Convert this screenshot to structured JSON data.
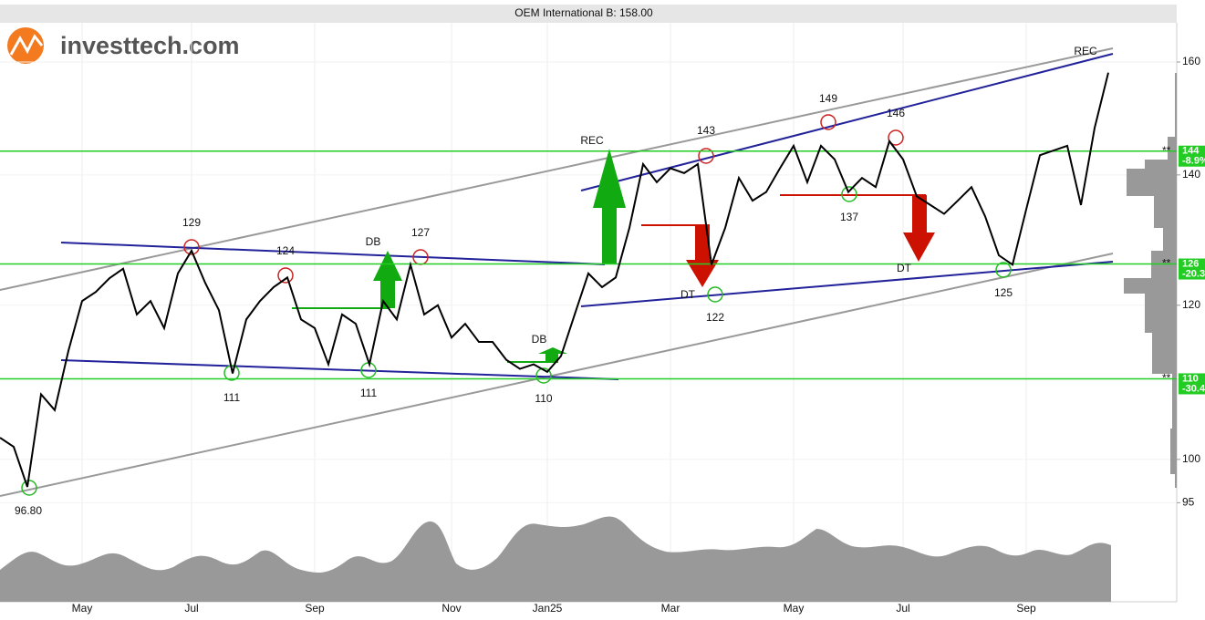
{
  "logo": "investtech.com",
  "chart_data": {
    "type": "line",
    "title": "OEM International B: 158.00",
    "categories": [
      null,
      null,
      null,
      null,
      null,
      null,
      "May",
      null,
      null,
      null,
      null,
      null,
      null,
      null,
      "Jul",
      null,
      null,
      null,
      null,
      null,
      null,
      null,
      null,
      "Sep",
      null,
      null,
      null,
      null,
      null,
      null,
      null,
      null,
      null,
      "Nov",
      null,
      null,
      null,
      null,
      null,
      null,
      "Jan25",
      null,
      null,
      null,
      null,
      null,
      null,
      null,
      null,
      "Mar",
      null,
      null,
      null,
      null,
      null,
      null,
      null,
      null,
      "May",
      null,
      null,
      null,
      null,
      null,
      null,
      null,
      "Jul",
      null,
      null,
      null,
      null,
      null,
      null,
      null,
      null,
      "Sep",
      null,
      null,
      null,
      null,
      null,
      null
    ],
    "series": [
      {
        "name": "OEM International B",
        "color": "#000000",
        "values": [
          102.6,
          101.5,
          96.8,
          108,
          106,
          113.7,
          120.6,
          121.9,
          123.9,
          125.3,
          118.7,
          120.6,
          116.8,
          124.6,
          128,
          123.2,
          119.3,
          110.7,
          118,
          120.6,
          122.6,
          124,
          118,
          116.8,
          111.9,
          118.7,
          117.4,
          111.9,
          120.6,
          118,
          125.9,
          118.7,
          120,
          115.5,
          117.4,
          114.9,
          114.9,
          112.5,
          111.3,
          111.9,
          110.9,
          113,
          118.7,
          124.6,
          122.6,
          124,
          131.5,
          141.8,
          138.8,
          141.1,
          140.3,
          141.8,
          125.9,
          131.5,
          139.5,
          135.8,
          137.2,
          141.1,
          144.9,
          138.8,
          144.9,
          142.6,
          137.2,
          139.5,
          138,
          145.7,
          142.6,
          136.5,
          135.1,
          133.7,
          135.8,
          138,
          133.3,
          127.3,
          125.9,
          134.4,
          143.3,
          144.1,
          144.9,
          135.1,
          148,
          158
        ]
      }
    ],
    "ylim": [
      84.5,
      167.6
    ],
    "yticks": [
      95,
      100,
      120,
      140,
      160
    ],
    "log_scale": true,
    "grid": true,
    "levels": [
      {
        "value": 144,
        "change": "-8.9%",
        "flag": "**"
      },
      {
        "value": 126,
        "change": "-20.3",
        "flag": "**"
      },
      {
        "value": 110,
        "change": "-30.4",
        "flag": "**"
      }
    ],
    "level_color": "#22cc22",
    "annotations": [
      "129",
      "124",
      "DB",
      "127",
      "111",
      "111",
      "110",
      "DB",
      "96.80",
      "REC",
      "143",
      "DT",
      "122",
      "149",
      "146",
      "137",
      "DT",
      "125",
      "REC"
    ]
  }
}
